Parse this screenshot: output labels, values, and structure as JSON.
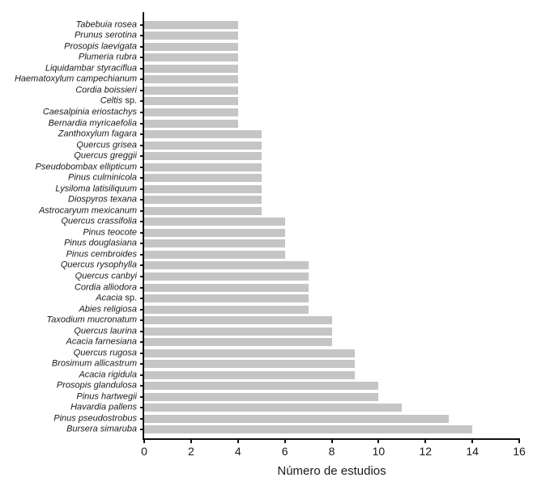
{
  "chart_data": {
    "type": "bar",
    "orientation": "horizontal",
    "title": "",
    "xlabel": "Número de estudios",
    "ylabel": "",
    "xlim": [
      0,
      16
    ],
    "xticks": [
      0,
      2,
      4,
      6,
      8,
      10,
      12,
      14,
      16
    ],
    "grid": false,
    "legend": false,
    "bar_color": "#c5c5c5",
    "axis_color": "#111111",
    "categories": [
      "Tabebuia rosea",
      "Prunus serotina",
      "Prosopis laevigata",
      "Plumeria rubra",
      "Liquidambar styraciflua",
      "Haematoxylum campechianum",
      "Cordia boissieri",
      "Celtis sp.",
      "Caesalpinia eriostachys",
      "Bernardia myricaefolia",
      "Zanthoxylum fagara",
      "Quercus grisea",
      "Quercus greggii",
      "Pseudobombax ellipticum",
      "Pinus culminicola",
      "Lysiloma latisiliquum",
      "Diospyros texana",
      "Astrocaryum mexicanum",
      "Quercus crassifolia",
      "Pinus teocote",
      "Pinus douglasiana",
      "Pinus cembroides",
      "Quercus rysophylla",
      "Quercus canbyi",
      "Cordia alliodora",
      "Acacia sp.",
      "Abies religiosa",
      "Taxodium mucronatum",
      "Quercus laurina",
      "Acacia farnesiana",
      "Quercus rugosa",
      "Brosimum allicastrum",
      "Acacia rigidula",
      "Prosopis glandulosa",
      "Pinus hartwegii",
      "Havardia pallens",
      "Pinus pseudostrobus",
      "Bursera simaruba"
    ],
    "values": [
      4,
      4,
      4,
      4,
      4,
      4,
      4,
      4,
      4,
      4,
      5,
      5,
      5,
      5,
      5,
      5,
      5,
      5,
      6,
      6,
      6,
      6,
      7,
      7,
      7,
      7,
      7,
      8,
      8,
      8,
      9,
      9,
      9,
      10,
      10,
      11,
      13,
      14
    ]
  }
}
